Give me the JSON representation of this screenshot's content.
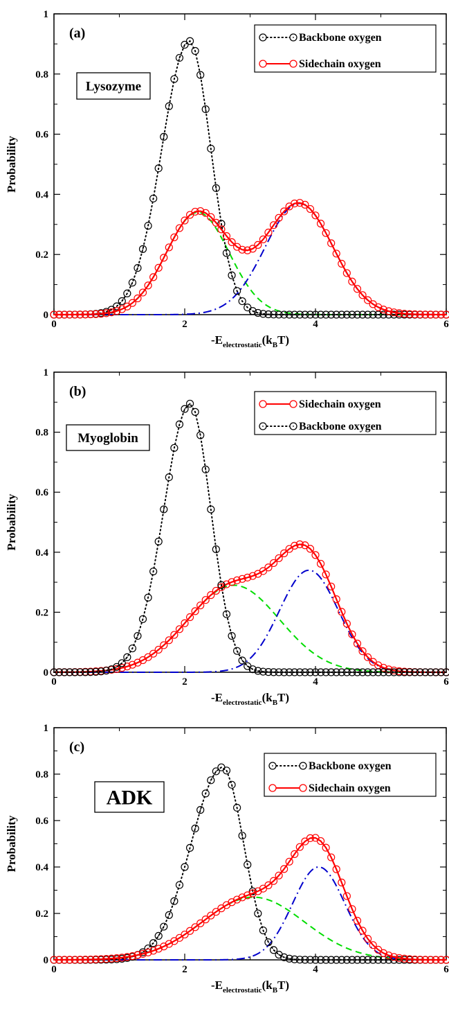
{
  "chart_data": [
    {
      "type": "line",
      "panel_label": "(a)",
      "protein": "Lysozyme",
      "xlabel_main": "-E",
      "xlabel_sub": "electrostatic",
      "xlabel_paren_open": "(k",
      "xlabel_sub2": "B",
      "xlabel_tail": "T)",
      "ylabel": "Probability",
      "xlim": [
        0,
        6
      ],
      "ylim": [
        0,
        1
      ],
      "xticks": [
        "0",
        "2",
        "4",
        "6"
      ],
      "yticks": [
        "0",
        "0.2",
        "0.4",
        "0.6",
        "0.8",
        "1"
      ],
      "legend": {
        "position": "top-right",
        "entries": [
          "Backbone oxygen",
          "Sidechain oxygen"
        ]
      },
      "series": [
        {
          "name": "Backbone oxygen",
          "style": "black-dotted-circles",
          "shape": {
            "type": "gauss",
            "mu": 2.07,
            "sigma": 0.42,
            "amp": 0.91,
            "sigmaR": 0.33
          }
        },
        {
          "name": "Sidechain oxygen",
          "style": "red-solid-circles",
          "shape": {
            "type": "sum",
            "a1": 0.34,
            "m1": 2.2,
            "s1": 0.48,
            "a2": 0.37,
            "m2": 3.75,
            "s2": 0.52
          }
        }
      ],
      "fits": [
        {
          "color": "#00dd00",
          "dash": "dashed",
          "shape": {
            "type": "gauss",
            "mu": 2.2,
            "sigma": 0.48,
            "amp": 0.34
          }
        },
        {
          "color": "#0000cc",
          "dash": "dashdot",
          "shape": {
            "type": "gauss",
            "mu": 3.75,
            "sigma": 0.52,
            "amp": 0.37
          }
        }
      ]
    },
    {
      "type": "line",
      "panel_label": "(b)",
      "protein": "Myoglobin",
      "xlabel_main": "-E",
      "xlabel_sub": "electrostatic",
      "xlabel_paren_open": "(k",
      "xlabel_sub2": "B",
      "xlabel_tail": "T)",
      "ylabel": "Probability",
      "xlim": [
        0,
        6
      ],
      "ylim": [
        0,
        1
      ],
      "xticks": [
        "0",
        "2",
        "4",
        "6"
      ],
      "yticks": [
        "0",
        "0.2",
        "0.4",
        "0.6",
        "0.8",
        "1"
      ],
      "legend": {
        "position": "top-right",
        "entries": [
          "Sidechain oxygen",
          "Backbone oxygen"
        ]
      },
      "series": [
        {
          "name": "Sidechain oxygen",
          "style": "red-solid-circles",
          "shape": {
            "type": "sum",
            "a1": 0.29,
            "m1": 2.75,
            "s1": 0.7,
            "a2": 0.34,
            "m2": 3.9,
            "s2": 0.45,
            "cutoff": 4.05
          }
        },
        {
          "name": "Backbone oxygen",
          "style": "black-dotted-circles",
          "shape": {
            "type": "gauss",
            "mu": 2.08,
            "sigma": 0.4,
            "amp": 0.895,
            "sigmaR": 0.32
          }
        }
      ],
      "fits": [
        {
          "color": "#00dd00",
          "dash": "dashed",
          "shape": {
            "type": "gauss",
            "mu": 2.75,
            "sigma": 0.7,
            "amp": 0.29
          }
        },
        {
          "color": "#0000cc",
          "dash": "dashdot",
          "shape": {
            "type": "gauss",
            "mu": 3.9,
            "sigma": 0.45,
            "amp": 0.34
          }
        }
      ]
    },
    {
      "type": "line",
      "panel_label": "(c)",
      "protein": "ADK",
      "xlabel_main": "-E",
      "xlabel_sub": "electrostatic",
      "xlabel_paren_open": "(k",
      "xlabel_sub2": "B",
      "xlabel_tail": "T)",
      "ylabel": "Probability",
      "xlim": [
        0,
        6
      ],
      "ylim": [
        0,
        1
      ],
      "xticks": [
        "0",
        "2",
        "4",
        "6"
      ],
      "yticks": [
        "0",
        "0.2",
        "0.4",
        "0.6",
        "0.8",
        "1"
      ],
      "legend": {
        "position": "top-right",
        "entries": [
          "Backbone oxygen",
          "Sidechain oxygen"
        ]
      },
      "series": [
        {
          "name": "Backbone oxygen",
          "style": "black-dotted-circles",
          "shape": {
            "type": "gauss",
            "mu": 2.58,
            "sigma": 0.48,
            "amp": 0.83,
            "sigmaR": 0.32
          }
        },
        {
          "name": "Sidechain oxygen",
          "style": "red-solid-circles",
          "shape": {
            "type": "sum",
            "a1": 0.27,
            "m1": 3.05,
            "s1": 0.78,
            "a2": 0.4,
            "m2": 4.05,
            "s2": 0.4,
            "cutoff": 4.1
          }
        }
      ],
      "fits": [
        {
          "color": "#00dd00",
          "dash": "dashed",
          "shape": {
            "type": "gauss",
            "mu": 3.05,
            "sigma": 0.78,
            "amp": 0.27
          }
        },
        {
          "color": "#0000cc",
          "dash": "dashdot",
          "shape": {
            "type": "gauss",
            "mu": 4.05,
            "sigma": 0.4,
            "amp": 0.4
          }
        }
      ]
    }
  ]
}
